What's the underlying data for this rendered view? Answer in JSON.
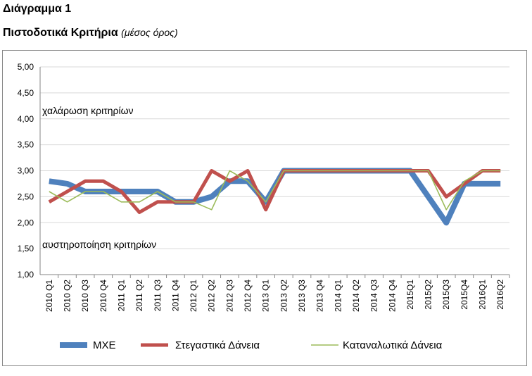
{
  "heading": "Διάγραμμα 1",
  "title": "Πιστοδοτικά Κριτήρια",
  "title_note": "(μέσος όρος)",
  "chart_data": {
    "type": "line",
    "categories": [
      "2010 Q1",
      "2010 Q2",
      "2010 Q3",
      "2010 Q4",
      "2011 Q1",
      "2011 Q2",
      "2011 Q3",
      "2011 Q4",
      "2012 Q1",
      "2012 Q2",
      "2012 Q3",
      "2012 Q4",
      "2013 Q1",
      "2013 Q2",
      "2013 Q3",
      "2013 Q4",
      "2014 Q1",
      "2014 Q2",
      "2014 Q3",
      "2014 Q4",
      "2015Q1",
      "2015Q2",
      "2015Q3",
      "2015Q4",
      "2016Q1",
      "2016Q2"
    ],
    "series": [
      {
        "name": "ΜΧΕ",
        "color": "#4f81bd",
        "values": [
          2.8,
          2.75,
          2.6,
          2.6,
          2.6,
          2.6,
          2.6,
          2.4,
          2.4,
          2.5,
          2.8,
          2.8,
          2.4,
          3.0,
          3.0,
          3.0,
          3.0,
          3.0,
          3.0,
          3.0,
          3.0,
          2.5,
          2.0,
          2.75,
          2.75,
          2.75
        ]
      },
      {
        "name": "Στεγαστικά Δάνεια",
        "color": "#c0504d",
        "values": [
          2.4,
          2.6,
          2.8,
          2.8,
          2.6,
          2.2,
          2.4,
          2.4,
          2.4,
          3.0,
          2.8,
          3.0,
          2.25,
          3.0,
          3.0,
          3.0,
          3.0,
          3.0,
          3.0,
          3.0,
          3.0,
          3.0,
          2.5,
          2.75,
          3.0,
          3.0
        ]
      },
      {
        "name": "Καταναλωτικά Δάνεια",
        "color": "#9bbb59",
        "values": [
          2.6,
          2.4,
          2.6,
          2.6,
          2.4,
          2.4,
          2.6,
          2.4,
          2.4,
          2.25,
          3.0,
          2.8,
          2.4,
          3.0,
          3.0,
          3.0,
          3.0,
          3.0,
          3.0,
          3.0,
          3.0,
          3.0,
          2.25,
          2.8,
          3.0,
          3.0
        ]
      }
    ],
    "ylim": [
      1.0,
      5.0
    ],
    "yticks": [
      "1,00",
      "1,50",
      "2,00",
      "2,50",
      "3,00",
      "3,50",
      "4,00",
      "4,50",
      "5,00"
    ],
    "annotations": [
      "χαλάρωση κριτηρίων",
      "αυστηροποίηση κριτηρίων"
    ],
    "grid": true,
    "legend": "bottom"
  }
}
